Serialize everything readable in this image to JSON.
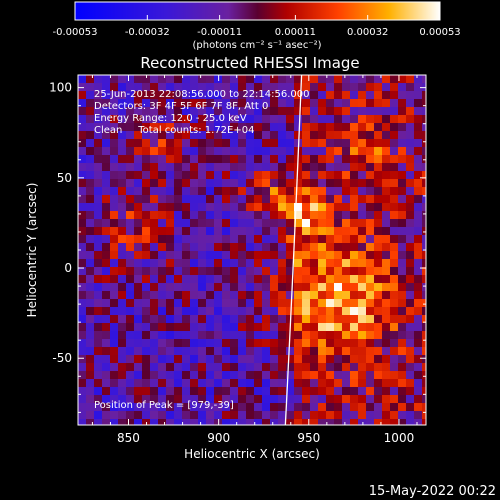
{
  "chart_data": {
    "type": "heatmap",
    "title": "Reconstructed RHESSI Image",
    "xlabel": "Heliocentric X (arcsec)",
    "ylabel": "Heliocentric Y (arcsec)",
    "xlim": [
      822,
      1015
    ],
    "ylim": [
      -87,
      107
    ],
    "x_ticks": [
      850,
      900,
      950,
      1000
    ],
    "y_ticks": [
      -50,
      0,
      50,
      100
    ],
    "colorbar": {
      "ticks": [
        "-0.00053",
        "-0.00032",
        "-0.00011",
        "0.00011",
        "0.00032",
        "0.00053"
      ],
      "range": [
        -0.00053,
        0.00053
      ],
      "unit_label": "(photons cm⁻² s⁻¹ asec⁻²)"
    },
    "annotations": [
      "25-Jun-2013 22:08:56.000 to 22:14:56.000",
      "Detectors: 3F 4F 5F 6F 7F 8F, Att 0",
      "Energy Range: 12.0 - 25.0 keV",
      "Clean     Total counts: 1.72E+04"
    ],
    "peak_label": "Position of Peak = [979,-39]",
    "peak": [
      979,
      -39
    ],
    "grid": false,
    "limb_line": true
  },
  "footer": {
    "date": "15-May-2022 00:22"
  }
}
